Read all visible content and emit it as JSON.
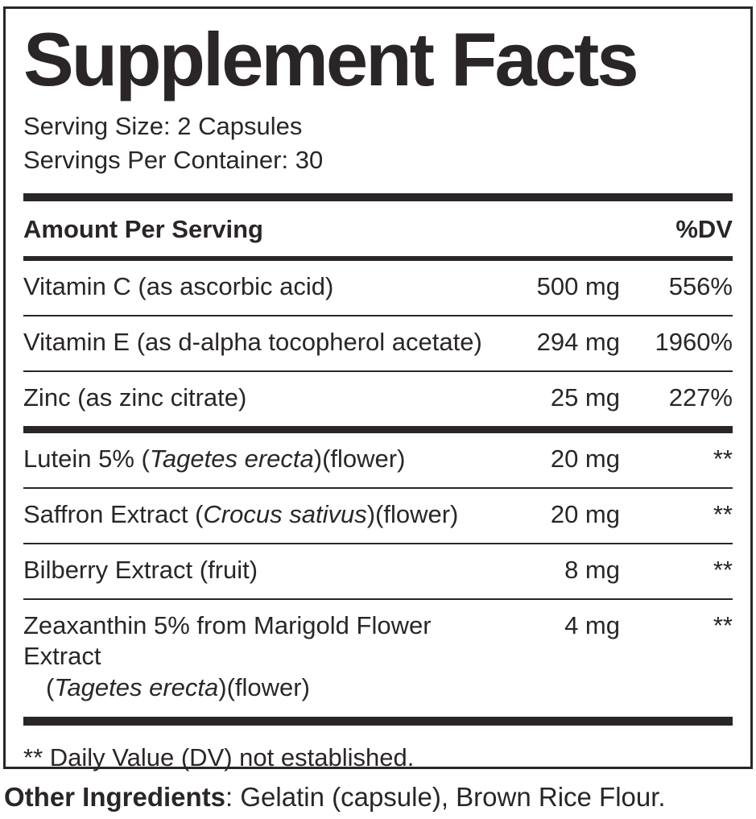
{
  "label": {
    "title": "Supplement Facts",
    "serving_size": "Serving Size: 2 Capsules",
    "servings_per_container": "Servings Per Container: 30",
    "columns": {
      "amount_header": "Amount Per Serving",
      "dv_header": "%DV"
    },
    "rows": [
      {
        "name_pre": "Vitamin C (as ascorbic acid)",
        "amount": "500 mg",
        "dv": "556%"
      },
      {
        "name_pre": "Vitamin E (as d-alpha tocopherol acetate)",
        "amount": "294 mg",
        "dv": "1960%"
      },
      {
        "name_pre": "Zinc (as zinc citrate)",
        "amount": "25 mg",
        "dv": "227%"
      },
      {
        "name_pre": "Lutein 5% (",
        "name_italic": "Tagetes erecta",
        "name_post": ")(flower)",
        "amount": "20 mg",
        "dv": "**"
      },
      {
        "name_pre": "Saffron Extract (",
        "name_italic": "Crocus sativus",
        "name_post": ")(flower)",
        "amount": "20 mg",
        "dv": "**"
      },
      {
        "name_pre": "Bilberry Extract (fruit)",
        "amount": "8 mg",
        "dv": "**"
      },
      {
        "name_pre": "Zeaxanthin 5% from Marigold Flower Extract",
        "line2_pre": "(",
        "line2_italic": "Tagetes erecta",
        "line2_post": ")(flower)",
        "amount": "4 mg",
        "dv": "**"
      }
    ],
    "footnote": "** Daily Value (DV) not established.",
    "other_ingredients": {
      "label": "Other Ingredients",
      "text": ": Gelatin (capsule), Brown Rice Flour."
    },
    "ink_color": "#2a2627"
  }
}
